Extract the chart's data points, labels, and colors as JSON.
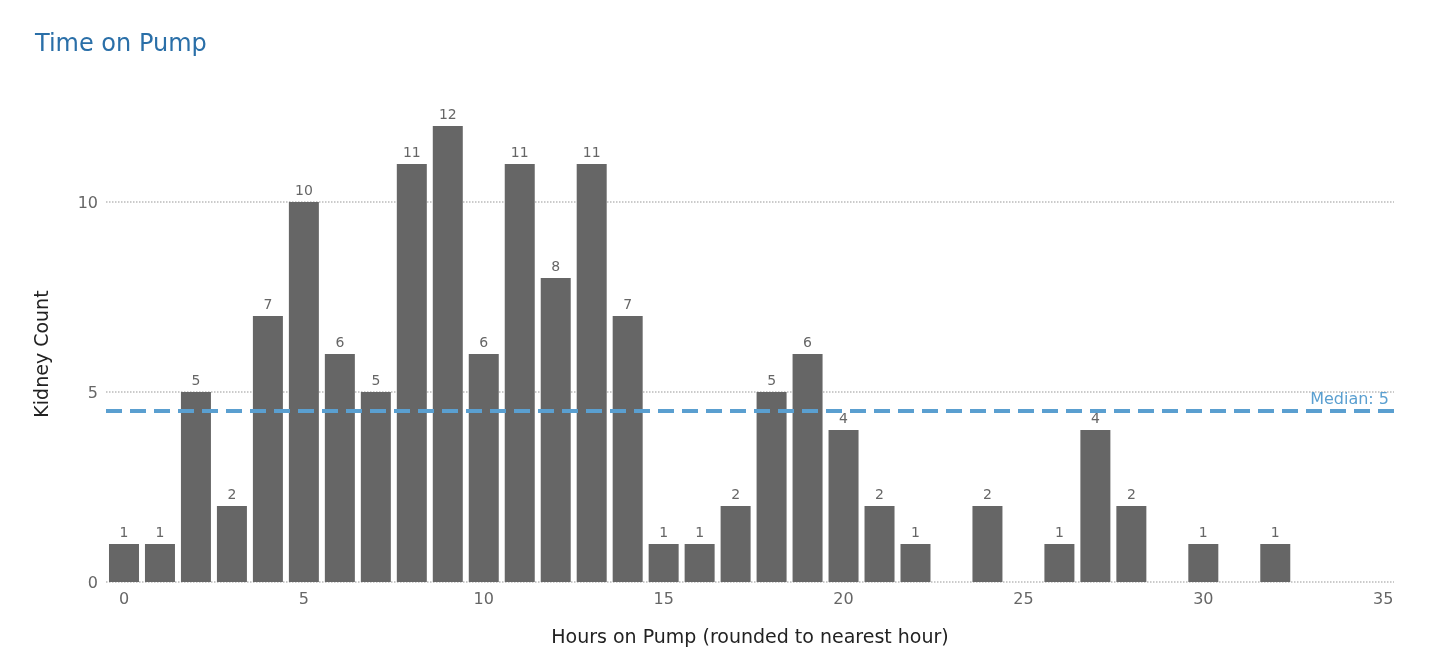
{
  "chart_data": {
    "type": "bar",
    "title": "Time on Pump",
    "xlabel": "Hours on Pump (rounded to nearest hour)",
    "ylabel": "Kidney Count",
    "x": [
      0,
      1,
      2,
      3,
      4,
      5,
      6,
      7,
      8,
      9,
      10,
      11,
      12,
      13,
      14,
      15,
      16,
      17,
      18,
      19,
      20,
      21,
      22,
      24,
      26,
      27,
      28,
      30,
      32
    ],
    "values": [
      1,
      1,
      5,
      2,
      7,
      10,
      6,
      5,
      11,
      12,
      6,
      11,
      8,
      11,
      7,
      1,
      1,
      2,
      5,
      6,
      4,
      2,
      1,
      2,
      1,
      4,
      2,
      1,
      1
    ],
    "color": "#666666",
    "xlim": [
      -0.5,
      35.3
    ],
    "xticks": [
      0,
      5,
      10,
      15,
      20,
      25,
      30,
      35
    ],
    "ylim": [
      0,
      12
    ],
    "yticks": [
      0,
      5,
      10
    ],
    "grid": "y",
    "data_labels": true,
    "ref_lines": [
      {
        "axis": "y",
        "value": 4.5,
        "label": "Median: 5",
        "color": "#5a9fd0",
        "line_style": "dashed"
      }
    ]
  }
}
